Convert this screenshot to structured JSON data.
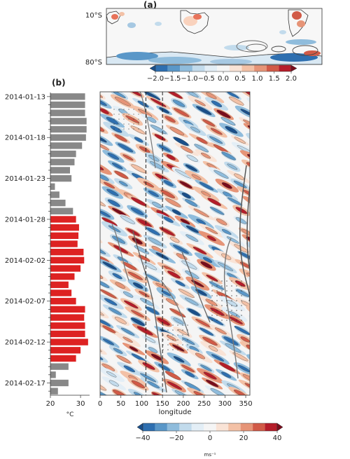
{
  "panel_a": {
    "label": "(a)",
    "lat_labels": [
      "10°S",
      "80°S"
    ],
    "colorbar_ticks": [
      "−2.0",
      "−1.5",
      "−1.0",
      "−0.5",
      "0.0",
      "0.5",
      "1.0",
      "1.5",
      "2.0"
    ]
  },
  "panel_b": {
    "label": "(b)",
    "xlabel": "longitude",
    "x_ticks": [
      "0",
      "50",
      "100",
      "150",
      "200",
      "250",
      "300",
      "350"
    ],
    "colorbar_ticks": [
      "−40",
      "−20",
      "0",
      "20",
      "40"
    ],
    "colorbar_unit": "ms⁻¹"
  },
  "chart_data": [
    {
      "type": "bar",
      "orientation": "horizontal",
      "xlabel": "°C",
      "x_ticks": [
        "20",
        "30"
      ],
      "xlim": [
        20,
        33
      ],
      "date_labels": [
        "2014-01-13",
        "2014-01-18",
        "2014-01-23",
        "2014-01-28",
        "2014-02-02",
        "2014-02-07",
        "2014-02-12",
        "2014-02-17"
      ],
      "dates": [
        "2014-01-13",
        "2014-01-14",
        "2014-01-15",
        "2014-01-16",
        "2014-01-17",
        "2014-01-18",
        "2014-01-19",
        "2014-01-20",
        "2014-01-21",
        "2014-01-22",
        "2014-01-23",
        "2014-01-24",
        "2014-01-25",
        "2014-01-26",
        "2014-01-27",
        "2014-01-28",
        "2014-01-29",
        "2014-01-30",
        "2014-01-31",
        "2014-02-01",
        "2014-02-02",
        "2014-02-03",
        "2014-02-04",
        "2014-02-05",
        "2014-02-06",
        "2014-02-07",
        "2014-02-08",
        "2014-02-09",
        "2014-02-10",
        "2014-02-11",
        "2014-02-12",
        "2014-02-13",
        "2014-02-14",
        "2014-02-15",
        "2014-02-16",
        "2014-02-17",
        "2014-02-18"
      ],
      "values": [
        31.5,
        31.5,
        31.5,
        32,
        32,
        31.8,
        30.5,
        28.5,
        28,
        26.5,
        27,
        21.5,
        23,
        25,
        27.5,
        28.5,
        29.5,
        29.3,
        29,
        31,
        31.2,
        30,
        28,
        26,
        27,
        28.5,
        31.5,
        31.2,
        31.5,
        31.5,
        32.5,
        30,
        28.5,
        26,
        21.8,
        26,
        22.5
      ],
      "colors": [
        "#888888",
        "#888888",
        "#888888",
        "#888888",
        "#888888",
        "#888888",
        "#888888",
        "#888888",
        "#888888",
        "#888888",
        "#888888",
        "#888888",
        "#888888",
        "#888888",
        "#888888",
        "#dd2222",
        "#dd2222",
        "#dd2222",
        "#dd2222",
        "#dd2222",
        "#dd2222",
        "#dd2222",
        "#dd2222",
        "#dd2222",
        "#dd2222",
        "#dd2222",
        "#dd2222",
        "#dd2222",
        "#dd2222",
        "#dd2222",
        "#dd2222",
        "#dd2222",
        "#dd2222",
        "#888888",
        "#888888",
        "#888888",
        "#888888"
      ]
    },
    {
      "type": "heatmap",
      "xlabel": "longitude",
      "xlim": [
        0,
        360
      ],
      "value_range": [
        -40,
        40
      ],
      "reference_longitudes": [
        110,
        150
      ],
      "colorscale": [
        "#1a4f8a",
        "#2e6fb0",
        "#5a97c8",
        "#8fbcdc",
        "#c2dbec",
        "#e3eef6",
        "#f5f5f5",
        "#f9e3d6",
        "#f3c1a6",
        "#e69477",
        "#d15a47",
        "#b51d2a",
        "#7a0c1c"
      ]
    }
  ]
}
